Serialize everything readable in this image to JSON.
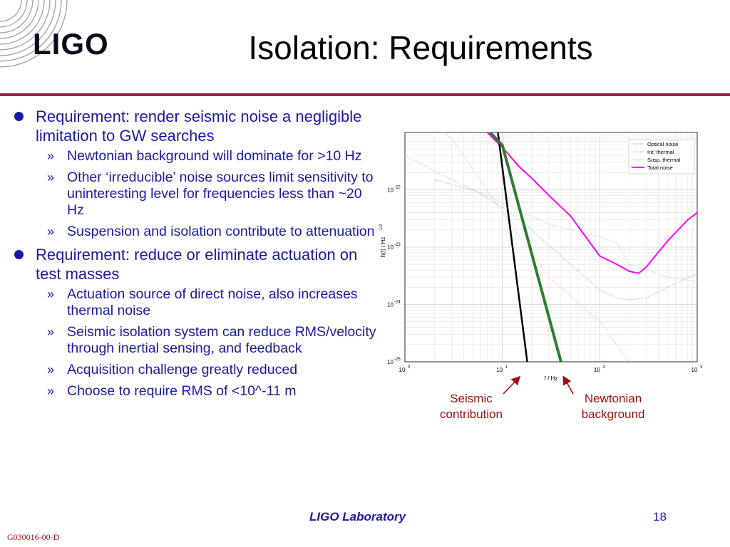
{
  "header": {
    "logo_text": "LIGO",
    "title": "Isolation: Requirements"
  },
  "bullets": [
    {
      "text": "Requirement: render seismic noise a negligible limitation to GW searches",
      "subs": [
        "Newtonian background will dominate for >10 Hz",
        "Other ‘irreducible’ noise sources limit sensitivity to uninteresting level for frequencies less than ~20 Hz",
        "Suspension and isolation contribute to attenuation"
      ]
    },
    {
      "text": "Requirement: reduce or eliminate actuation on test masses",
      "subs": [
        "Actuation source of direct noise, also increases thermal noise",
        "Seismic isolation system can reduce RMS/velocity through inertial sensing, and feedback",
        "Acquisition challenge greatly reduced",
        "Choose to require RMS of <10^-11 m"
      ]
    }
  ],
  "sub_marker": "»",
  "chart_data": {
    "type": "line",
    "xscale": "log",
    "yscale": "log",
    "xlim": [
      1,
      1000
    ],
    "ylim": [
      1e-25,
      1e-21
    ],
    "xlabel": "f / Hz",
    "ylabel": "h(f) / Hz",
    "ylabel_sup": "1/2",
    "xticks": [
      {
        "base": "10",
        "exp": "0"
      },
      {
        "base": "10",
        "exp": "1"
      },
      {
        "base": "10",
        "exp": "2"
      },
      {
        "base": "10",
        "exp": "3"
      }
    ],
    "yticks": [
      {
        "base": "10",
        "exp": "-22"
      },
      {
        "base": "10",
        "exp": "-23"
      },
      {
        "base": "10",
        "exp": "-24"
      },
      {
        "base": "10",
        "exp": "-25"
      }
    ],
    "grid": true,
    "legend_position": "top-right",
    "series": [
      {
        "name": "Optical noise",
        "color": "#7fb3d5",
        "style": "dotted",
        "x": [
          2,
          5,
          10,
          20,
          50,
          100,
          150,
          200,
          300,
          500,
          1000
        ],
        "y": [
          1.5e-22,
          1e-22,
          5e-23,
          2e-23,
          5e-24,
          1.8e-24,
          1.3e-24,
          1.2e-24,
          1.3e-24,
          2e-24,
          3.5e-24
        ]
      },
      {
        "name": "Int. thermal",
        "color": "#9ad29a",
        "style": "dotted",
        "x": [
          1,
          3,
          10,
          30,
          100,
          150,
          200,
          300,
          500,
          1000
        ],
        "y": [
          4e-22,
          1.5e-22,
          6e-23,
          2.5e-23,
          1.5e-23,
          1.2e-23,
          5e-24,
          4e-24,
          3e-24,
          2.5e-24
        ]
      },
      {
        "name": "Susp. thermal",
        "color": "#f2a7b8",
        "style": "dotted",
        "x": [
          1,
          3,
          10,
          30,
          100,
          200
        ],
        "y": [
          3e-21,
          8e-22,
          4e-23,
          3e-24,
          5e-25,
          1e-25
        ]
      },
      {
        "name": "Total noise",
        "color": "#ff00ff",
        "style": "solid",
        "x": [
          7,
          10,
          15,
          20,
          30,
          50,
          70,
          100,
          150,
          200,
          250,
          300,
          500,
          800,
          1000
        ],
        "y": [
          1e-21,
          5.5e-22,
          2.5e-22,
          1.6e-22,
          8e-23,
          3.5e-23,
          1.6e-23,
          7e-24,
          5e-24,
          3.8e-24,
          3.5e-24,
          4.5e-24,
          1.3e-23,
          3e-23,
          4e-23
        ]
      },
      {
        "color": "#000000",
        "style": "solid",
        "x": [
          9,
          18
        ],
        "y": [
          1e-21,
          1e-25
        ]
      },
      {
        "color": "#2e7d32",
        "style": "solid",
        "x": [
          7.5,
          10,
          40
        ],
        "y": [
          1e-21,
          6e-22,
          1e-25
        ]
      }
    ]
  },
  "annotations": {
    "seismic": "Seismic contribution",
    "newtonian": "Newtonian background"
  },
  "footer": {
    "lab": "LIGO Laboratory",
    "page": "18",
    "doc_id": "G030016-00-D"
  }
}
